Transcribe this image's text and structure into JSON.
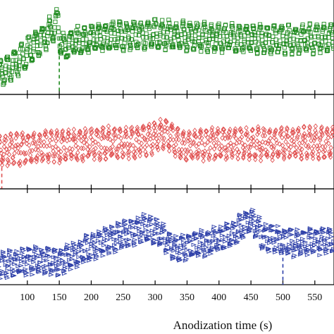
{
  "chart_data": {
    "type": "scatter",
    "xlabel": "Anodization time (s)",
    "xlim": [
      55,
      580
    ],
    "x_ticks": [
      100,
      150,
      200,
      250,
      300,
      350,
      400,
      450,
      500,
      550
    ],
    "grid": false,
    "legend": "none",
    "panels": [
      {
        "marker": "square",
        "color": "#1e8a1e",
        "ylim": [
          0,
          1
        ],
        "marker_time": 150,
        "trend": [
          [
            55,
            0.2
          ],
          [
            80,
            0.32
          ],
          [
            110,
            0.52
          ],
          [
            140,
            0.72
          ],
          [
            148,
            0.8
          ],
          [
            153,
            0.5
          ],
          [
            175,
            0.58
          ],
          [
            220,
            0.63
          ],
          [
            300,
            0.66
          ],
          [
            400,
            0.62
          ],
          [
            500,
            0.6
          ],
          [
            580,
            0.62
          ]
        ],
        "oscillation_period_s": 11,
        "oscillation_amplitude": 0.14
      },
      {
        "marker": "diamond",
        "color": "#e05050",
        "ylim": [
          0,
          1
        ],
        "marker_time": 60,
        "trend": [
          [
            55,
            0.42
          ],
          [
            120,
            0.46
          ],
          [
            200,
            0.5
          ],
          [
            270,
            0.52
          ],
          [
            320,
            0.62
          ],
          [
            340,
            0.48
          ],
          [
            400,
            0.5
          ],
          [
            500,
            0.5
          ],
          [
            580,
            0.52
          ]
        ],
        "oscillation_period_s": 9,
        "oscillation_amplitude": 0.16
      },
      {
        "marker": "triangle",
        "color": "#2c3ea8",
        "ylim": [
          0,
          1
        ],
        "marker_time": 500,
        "trend": [
          [
            55,
            0.2
          ],
          [
            110,
            0.26
          ],
          [
            150,
            0.24
          ],
          [
            210,
            0.44
          ],
          [
            280,
            0.62
          ],
          [
            305,
            0.58
          ],
          [
            330,
            0.4
          ],
          [
            380,
            0.45
          ],
          [
            420,
            0.55
          ],
          [
            450,
            0.72
          ],
          [
            470,
            0.52
          ],
          [
            520,
            0.45
          ],
          [
            580,
            0.5
          ]
        ],
        "oscillation_period_s": 10,
        "oscillation_amplitude": 0.13
      }
    ]
  }
}
